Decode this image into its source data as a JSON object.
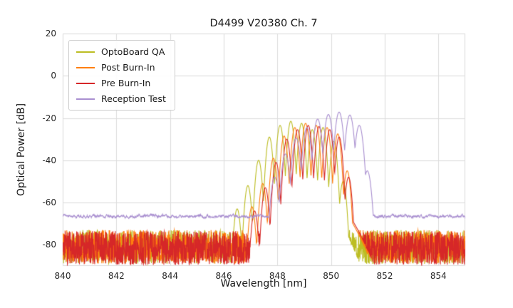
{
  "chart_data": {
    "type": "line",
    "title": "D4499 V20380 Ch. 7",
    "xlabel": "Wavelength [nm]",
    "ylabel": "Optical Power [dB]",
    "xlim": [
      840,
      855
    ],
    "ylim": [
      -90,
      20
    ],
    "xticks": [
      840,
      842,
      844,
      846,
      848,
      850,
      852,
      854
    ],
    "yticks": [
      20,
      0,
      -20,
      -40,
      -60,
      -80
    ],
    "grid": true,
    "grid_color": "#dcdcdc",
    "background": "#ffffff",
    "legend_position": "upper left",
    "series": [
      {
        "name": "OptoBoard QA",
        "color": "#bcbd22",
        "noise_floor": -81,
        "noise_amp": 8,
        "smooth": false,
        "peaks": [
          [
            848.7,
            -50,
            0.38
          ],
          [
            846.5,
            -63,
            0.04
          ],
          [
            846.9,
            -52,
            0.04
          ],
          [
            847.3,
            -40,
            0.04
          ],
          [
            847.7,
            -29,
            0.04
          ],
          [
            848.1,
            -23.5,
            0.04
          ],
          [
            848.5,
            -21.5,
            0.04
          ],
          [
            848.9,
            -22.5,
            0.04
          ],
          [
            849.3,
            -25.5,
            0.04
          ],
          [
            849.7,
            -24.5,
            0.04
          ],
          [
            850.1,
            -31,
            0.04
          ],
          [
            850.45,
            -50,
            0.04
          ]
        ]
      },
      {
        "name": "Post Burn-In",
        "color": "#ff7f0e",
        "noise_floor": -81,
        "noise_amp": 8,
        "smooth": false,
        "peaks": [
          [
            849.2,
            -52,
            0.38
          ],
          [
            847.05,
            -62,
            0.04
          ],
          [
            847.45,
            -51,
            0.04
          ],
          [
            847.85,
            -39,
            0.04
          ],
          [
            848.25,
            -28.5,
            0.04
          ],
          [
            848.65,
            -24.5,
            0.04
          ],
          [
            849.05,
            -22.5,
            0.04
          ],
          [
            849.45,
            -23.5,
            0.04
          ],
          [
            849.85,
            -24.5,
            0.04
          ],
          [
            850.25,
            -27.5,
            0.04
          ],
          [
            850.6,
            -45,
            0.04
          ]
        ]
      },
      {
        "name": "Pre Burn-In",
        "color": "#d62728",
        "noise_floor": -81.5,
        "noise_amp": 8,
        "smooth": false,
        "peaks": [
          [
            849.3,
            -53,
            0.38
          ],
          [
            847.15,
            -64,
            0.04
          ],
          [
            847.55,
            -53,
            0.04
          ],
          [
            847.95,
            -41,
            0.04
          ],
          [
            848.35,
            -30,
            0.04
          ],
          [
            848.75,
            -25.5,
            0.04
          ],
          [
            849.15,
            -23.5,
            0.04
          ],
          [
            849.55,
            -24,
            0.04
          ],
          [
            849.95,
            -25.5,
            0.04
          ],
          [
            850.3,
            -29,
            0.04
          ],
          [
            850.65,
            -48,
            0.04
          ]
        ]
      },
      {
        "name": "Reception Test",
        "color": "#a98fd0",
        "noise_floor": -66.5,
        "noise_amp": 2.2,
        "smooth": true,
        "peaks": [
          [
            850.0,
            -40,
            0.3
          ],
          [
            847.9,
            -48,
            0.048
          ],
          [
            848.3,
            -37,
            0.048
          ],
          [
            848.7,
            -29.5,
            0.048
          ],
          [
            849.1,
            -24.5,
            0.048
          ],
          [
            849.5,
            -20.5,
            0.048
          ],
          [
            849.9,
            -18.3,
            0.048
          ],
          [
            850.3,
            -17.2,
            0.048
          ],
          [
            850.7,
            -18.6,
            0.048
          ],
          [
            851.05,
            -23.5,
            0.048
          ],
          [
            851.35,
            -45,
            0.048
          ]
        ]
      }
    ]
  }
}
